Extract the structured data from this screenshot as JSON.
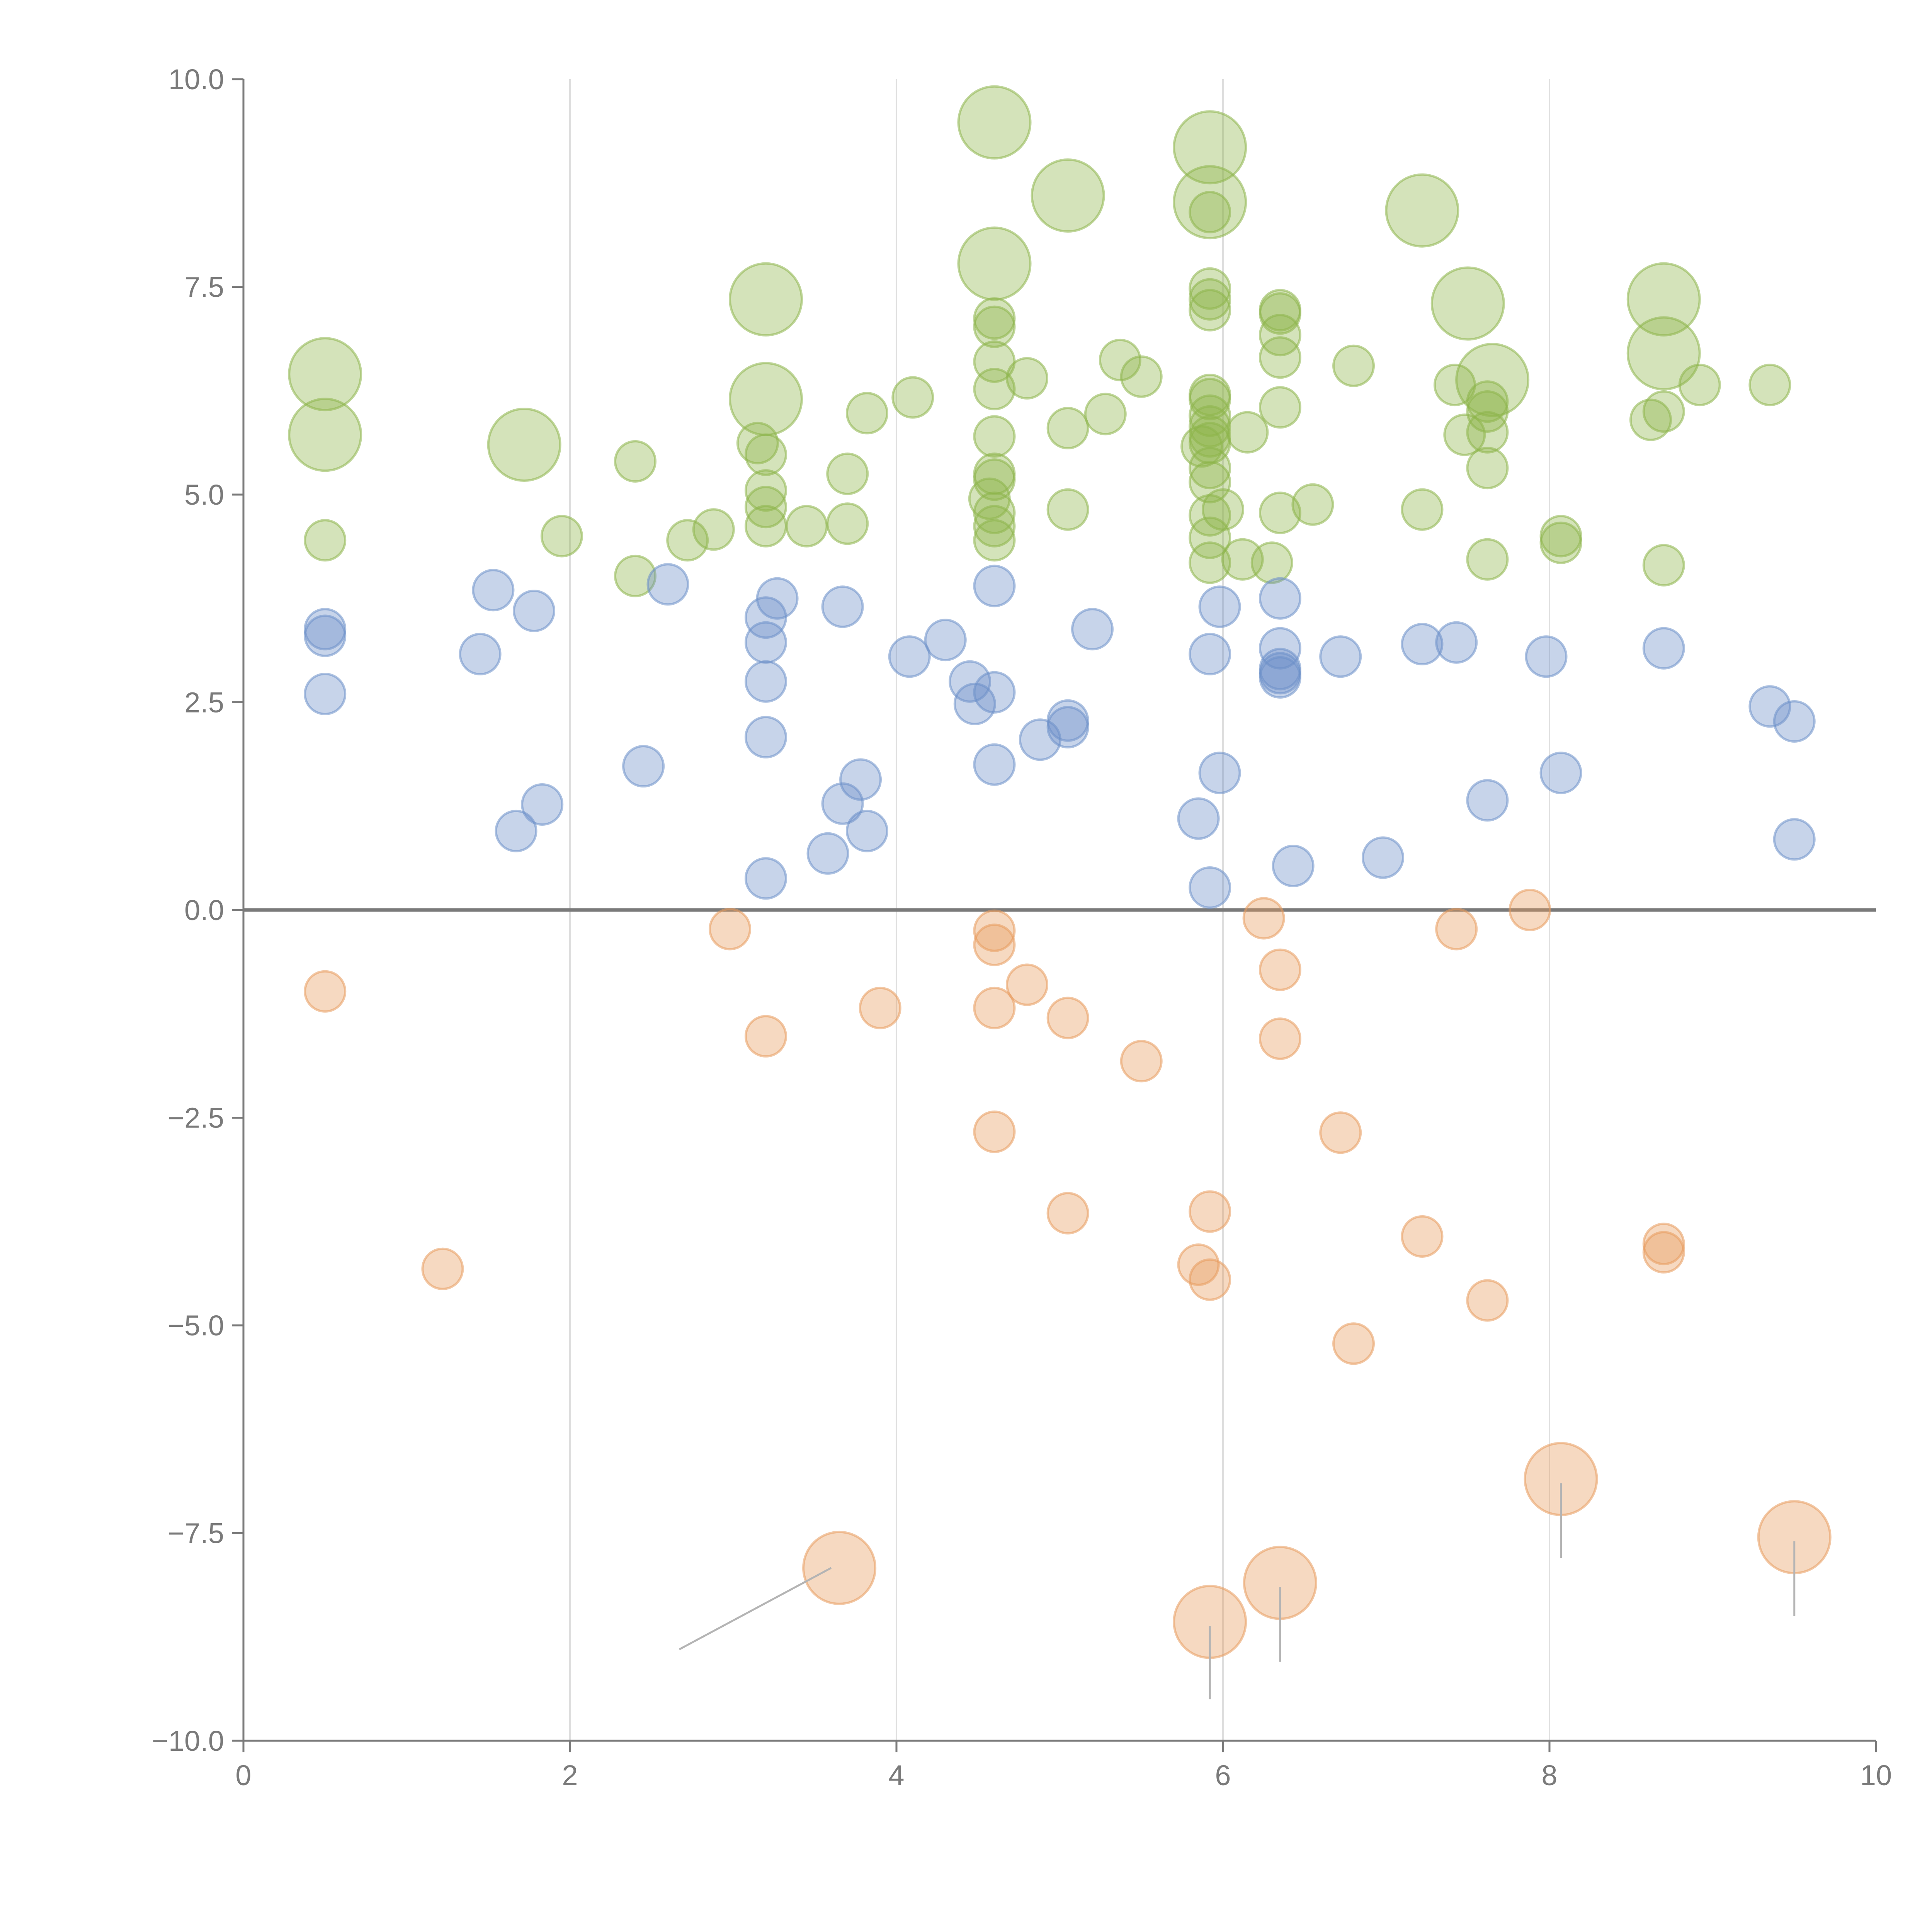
{
  "chart_data": {
    "type": "scatter",
    "subtype": "bubble",
    "title": "",
    "xlabel": "",
    "ylabel": "",
    "xlim": [
      0,
      10
    ],
    "ylim": [
      -10,
      10
    ],
    "x_ticks": [
      "0",
      "2",
      "4",
      "6",
      "8",
      "10"
    ],
    "x_tick_values": [
      0,
      2,
      4,
      6,
      8,
      10
    ],
    "y_ticks": [
      "10.0",
      "7.5",
      "5.0",
      "2.5",
      "0.0",
      "−2.5",
      "−5.0",
      "−7.5",
      "−10.0"
    ],
    "y_tick_values": [
      10,
      7.5,
      5,
      2.5,
      0,
      -2.5,
      -5,
      -7.5,
      -10
    ],
    "vertical_gridlines_at": [
      2,
      4,
      6,
      8
    ],
    "zero_line": true,
    "legend": "none",
    "series": [
      {
        "name": "green",
        "color": "#8db54a",
        "stroke": "#8db54a",
        "points": [
          {
            "x": 0.5,
            "y": 6.45,
            "s": 2
          },
          {
            "x": 0.5,
            "y": 5.72,
            "s": 2
          },
          {
            "x": 0.5,
            "y": 4.45,
            "s": 1
          },
          {
            "x": 1.72,
            "y": 5.6,
            "s": 2
          },
          {
            "x": 1.95,
            "y": 4.5,
            "s": 1
          },
          {
            "x": 2.4,
            "y": 5.4,
            "s": 1
          },
          {
            "x": 2.4,
            "y": 4.02,
            "s": 1
          },
          {
            "x": 2.72,
            "y": 4.45,
            "s": 1
          },
          {
            "x": 2.88,
            "y": 4.58,
            "s": 1
          },
          {
            "x": 3.2,
            "y": 7.35,
            "s": 2
          },
          {
            "x": 3.2,
            "y": 6.15,
            "s": 2
          },
          {
            "x": 3.15,
            "y": 5.62,
            "s": 1
          },
          {
            "x": 3.2,
            "y": 5.48,
            "s": 1
          },
          {
            "x": 3.2,
            "y": 5.05,
            "s": 1
          },
          {
            "x": 3.2,
            "y": 4.85,
            "s": 1
          },
          {
            "x": 3.2,
            "y": 4.62,
            "s": 1
          },
          {
            "x": 3.45,
            "y": 4.62,
            "s": 1
          },
          {
            "x": 3.7,
            "y": 5.25,
            "s": 1
          },
          {
            "x": 3.7,
            "y": 4.65,
            "s": 1
          },
          {
            "x": 3.82,
            "y": 5.98,
            "s": 1
          },
          {
            "x": 4.1,
            "y": 6.17,
            "s": 1
          },
          {
            "x": 4.6,
            "y": 9.48,
            "s": 2
          },
          {
            "x": 4.6,
            "y": 7.78,
            "s": 2
          },
          {
            "x": 4.6,
            "y": 7.12,
            "s": 1
          },
          {
            "x": 4.6,
            "y": 7.02,
            "s": 1
          },
          {
            "x": 4.6,
            "y": 6.6,
            "s": 1
          },
          {
            "x": 4.6,
            "y": 6.27,
            "s": 1
          },
          {
            "x": 4.6,
            "y": 5.7,
            "s": 1
          },
          {
            "x": 4.6,
            "y": 5.25,
            "s": 1
          },
          {
            "x": 4.6,
            "y": 5.18,
            "s": 1
          },
          {
            "x": 4.57,
            "y": 4.95,
            "s": 1
          },
          {
            "x": 4.6,
            "y": 4.78,
            "s": 1
          },
          {
            "x": 4.6,
            "y": 4.62,
            "s": 1
          },
          {
            "x": 4.6,
            "y": 4.45,
            "s": 1
          },
          {
            "x": 4.8,
            "y": 6.4,
            "s": 1
          },
          {
            "x": 5.05,
            "y": 8.6,
            "s": 2
          },
          {
            "x": 5.05,
            "y": 5.8,
            "s": 1
          },
          {
            "x": 5.05,
            "y": 4.82,
            "s": 1
          },
          {
            "x": 5.28,
            "y": 5.97,
            "s": 1
          },
          {
            "x": 5.37,
            "y": 6.62,
            "s": 1
          },
          {
            "x": 5.5,
            "y": 6.42,
            "s": 1
          },
          {
            "x": 5.92,
            "y": 9.18,
            "s": 2
          },
          {
            "x": 5.92,
            "y": 8.52,
            "s": 2
          },
          {
            "x": 5.92,
            "y": 8.4,
            "s": 1
          },
          {
            "x": 5.92,
            "y": 7.48,
            "s": 1
          },
          {
            "x": 5.92,
            "y": 7.35,
            "s": 1
          },
          {
            "x": 5.92,
            "y": 7.22,
            "s": 1
          },
          {
            "x": 5.92,
            "y": 6.2,
            "s": 1
          },
          {
            "x": 5.92,
            "y": 6.15,
            "s": 1
          },
          {
            "x": 5.92,
            "y": 5.95,
            "s": 1
          },
          {
            "x": 5.92,
            "y": 5.82,
            "s": 1
          },
          {
            "x": 5.92,
            "y": 5.7,
            "s": 1
          },
          {
            "x": 5.92,
            "y": 5.62,
            "s": 1
          },
          {
            "x": 5.87,
            "y": 5.58,
            "s": 1
          },
          {
            "x": 5.92,
            "y": 5.32,
            "s": 1
          },
          {
            "x": 5.92,
            "y": 5.15,
            "s": 1
          },
          {
            "x": 5.92,
            "y": 4.75,
            "s": 1
          },
          {
            "x": 5.92,
            "y": 4.48,
            "s": 1
          },
          {
            "x": 5.92,
            "y": 4.18,
            "s": 1
          },
          {
            "x": 6.0,
            "y": 4.82,
            "s": 1
          },
          {
            "x": 6.12,
            "y": 4.22,
            "s": 1
          },
          {
            "x": 6.15,
            "y": 5.75,
            "s": 1
          },
          {
            "x": 6.35,
            "y": 7.22,
            "s": 1
          },
          {
            "x": 6.35,
            "y": 7.18,
            "s": 1
          },
          {
            "x": 6.35,
            "y": 6.92,
            "s": 1
          },
          {
            "x": 6.35,
            "y": 6.65,
            "s": 1
          },
          {
            "x": 6.35,
            "y": 6.05,
            "s": 1
          },
          {
            "x": 6.35,
            "y": 4.78,
            "s": 1
          },
          {
            "x": 6.3,
            "y": 4.18,
            "s": 1
          },
          {
            "x": 6.55,
            "y": 4.88,
            "s": 1
          },
          {
            "x": 6.8,
            "y": 6.55,
            "s": 1
          },
          {
            "x": 7.22,
            "y": 8.42,
            "s": 2
          },
          {
            "x": 7.22,
            "y": 4.82,
            "s": 1
          },
          {
            "x": 7.42,
            "y": 6.32,
            "s": 1
          },
          {
            "x": 7.5,
            "y": 7.3,
            "s": 2
          },
          {
            "x": 7.48,
            "y": 5.72,
            "s": 1
          },
          {
            "x": 7.65,
            "y": 6.38,
            "s": 2
          },
          {
            "x": 7.62,
            "y": 6.12,
            "s": 1
          },
          {
            "x": 7.62,
            "y": 6.0,
            "s": 1
          },
          {
            "x": 7.62,
            "y": 5.75,
            "s": 1
          },
          {
            "x": 7.62,
            "y": 5.32,
            "s": 1
          },
          {
            "x": 7.62,
            "y": 4.22,
            "s": 1
          },
          {
            "x": 8.07,
            "y": 4.5,
            "s": 1
          },
          {
            "x": 8.07,
            "y": 4.42,
            "s": 1
          },
          {
            "x": 8.7,
            "y": 7.35,
            "s": 2
          },
          {
            "x": 8.7,
            "y": 6.7,
            "s": 2
          },
          {
            "x": 8.7,
            "y": 6.0,
            "s": 1
          },
          {
            "x": 8.62,
            "y": 5.9,
            "s": 1
          },
          {
            "x": 8.7,
            "y": 4.15,
            "s": 1
          },
          {
            "x": 8.92,
            "y": 6.32,
            "s": 1
          },
          {
            "x": 9.35,
            "y": 6.32,
            "s": 1
          }
        ]
      },
      {
        "name": "blue",
        "color": "#6b8fc9",
        "stroke": "#6b8fc9",
        "points": [
          {
            "x": 0.5,
            "y": 3.38,
            "s": 1
          },
          {
            "x": 0.5,
            "y": 3.3,
            "s": 1
          },
          {
            "x": 0.5,
            "y": 2.6,
            "s": 1
          },
          {
            "x": 1.45,
            "y": 3.08,
            "s": 1
          },
          {
            "x": 1.53,
            "y": 3.85,
            "s": 1
          },
          {
            "x": 1.78,
            "y": 3.6,
            "s": 1
          },
          {
            "x": 1.67,
            "y": 0.95,
            "s": 1
          },
          {
            "x": 1.83,
            "y": 1.27,
            "s": 1
          },
          {
            "x": 2.45,
            "y": 1.73,
            "s": 1
          },
          {
            "x": 2.6,
            "y": 3.92,
            "s": 1
          },
          {
            "x": 3.2,
            "y": 3.52,
            "s": 1
          },
          {
            "x": 3.2,
            "y": 3.22,
            "s": 1
          },
          {
            "x": 3.27,
            "y": 3.75,
            "s": 1
          },
          {
            "x": 3.2,
            "y": 2.75,
            "s": 1
          },
          {
            "x": 3.2,
            "y": 2.08,
            "s": 1
          },
          {
            "x": 3.2,
            "y": 0.38,
            "s": 1
          },
          {
            "x": 3.58,
            "y": 0.68,
            "s": 1
          },
          {
            "x": 3.67,
            "y": 1.28,
            "s": 1
          },
          {
            "x": 3.67,
            "y": 3.65,
            "s": 1
          },
          {
            "x": 3.78,
            "y": 1.57,
            "s": 1
          },
          {
            "x": 3.82,
            "y": 0.95,
            "s": 1
          },
          {
            "x": 4.08,
            "y": 3.05,
            "s": 1
          },
          {
            "x": 4.3,
            "y": 3.25,
            "s": 1
          },
          {
            "x": 4.45,
            "y": 2.75,
            "s": 1
          },
          {
            "x": 4.48,
            "y": 2.48,
            "s": 1
          },
          {
            "x": 4.6,
            "y": 2.62,
            "s": 1
          },
          {
            "x": 4.6,
            "y": 3.9,
            "s": 1
          },
          {
            "x": 4.6,
            "y": 1.75,
            "s": 1
          },
          {
            "x": 4.88,
            "y": 2.05,
            "s": 1
          },
          {
            "x": 5.05,
            "y": 2.28,
            "s": 1
          },
          {
            "x": 5.05,
            "y": 2.2,
            "s": 1
          },
          {
            "x": 5.2,
            "y": 3.38,
            "s": 1
          },
          {
            "x": 5.85,
            "y": 1.1,
            "s": 1
          },
          {
            "x": 5.92,
            "y": 3.08,
            "s": 1
          },
          {
            "x": 5.92,
            "y": 0.27,
            "s": 1
          },
          {
            "x": 5.98,
            "y": 3.65,
            "s": 1
          },
          {
            "x": 5.98,
            "y": 1.65,
            "s": 1
          },
          {
            "x": 6.35,
            "y": 3.75,
            "s": 1
          },
          {
            "x": 6.35,
            "y": 3.15,
            "s": 1
          },
          {
            "x": 6.35,
            "y": 2.9,
            "s": 1
          },
          {
            "x": 6.35,
            "y": 2.85,
            "s": 1
          },
          {
            "x": 6.35,
            "y": 2.8,
            "s": 1
          },
          {
            "x": 6.43,
            "y": 0.53,
            "s": 1
          },
          {
            "x": 6.72,
            "y": 3.05,
            "s": 1
          },
          {
            "x": 6.98,
            "y": 0.63,
            "s": 1
          },
          {
            "x": 7.22,
            "y": 3.2,
            "s": 1
          },
          {
            "x": 7.43,
            "y": 3.22,
            "s": 1
          },
          {
            "x": 7.62,
            "y": 1.32,
            "s": 1
          },
          {
            "x": 7.98,
            "y": 3.05,
            "s": 1
          },
          {
            "x": 8.07,
            "y": 1.65,
            "s": 1
          },
          {
            "x": 8.7,
            "y": 3.15,
            "s": 1
          },
          {
            "x": 9.35,
            "y": 2.45,
            "s": 1
          },
          {
            "x": 9.5,
            "y": 2.27,
            "s": 1
          },
          {
            "x": 9.5,
            "y": 0.85,
            "s": 1
          }
        ]
      },
      {
        "name": "orange",
        "color": "#e89a5c",
        "stroke": "#e89a5c",
        "points": [
          {
            "x": 0.5,
            "y": -0.98,
            "s": 1
          },
          {
            "x": 1.22,
            "y": -4.32,
            "s": 1
          },
          {
            "x": 2.98,
            "y": -0.23,
            "s": 1
          },
          {
            "x": 3.2,
            "y": -1.52,
            "s": 1
          },
          {
            "x": 3.65,
            "y": -7.92,
            "s": 2
          },
          {
            "x": 3.9,
            "y": -1.18,
            "s": 1
          },
          {
            "x": 4.6,
            "y": -0.25,
            "s": 1
          },
          {
            "x": 4.6,
            "y": -0.42,
            "s": 1
          },
          {
            "x": 4.6,
            "y": -1.18,
            "s": 1
          },
          {
            "x": 4.6,
            "y": -2.67,
            "s": 1
          },
          {
            "x": 4.8,
            "y": -0.9,
            "s": 1
          },
          {
            "x": 5.05,
            "y": -1.3,
            "s": 1
          },
          {
            "x": 5.05,
            "y": -3.65,
            "s": 1
          },
          {
            "x": 5.5,
            "y": -1.82,
            "s": 1
          },
          {
            "x": 5.85,
            "y": -4.27,
            "s": 1
          },
          {
            "x": 5.92,
            "y": -3.63,
            "s": 1
          },
          {
            "x": 5.92,
            "y": -4.45,
            "s": 1
          },
          {
            "x": 5.92,
            "y": -8.57,
            "s": 2
          },
          {
            "x": 6.25,
            "y": -0.1,
            "s": 1
          },
          {
            "x": 6.35,
            "y": -0.72,
            "s": 1
          },
          {
            "x": 6.35,
            "y": -1.55,
            "s": 1
          },
          {
            "x": 6.35,
            "y": -8.1,
            "s": 2
          },
          {
            "x": 6.72,
            "y": -2.68,
            "s": 1
          },
          {
            "x": 6.8,
            "y": -5.22,
            "s": 1
          },
          {
            "x": 7.22,
            "y": -3.93,
            "s": 1
          },
          {
            "x": 7.43,
            "y": -0.23,
            "s": 1
          },
          {
            "x": 7.62,
            "y": -4.7,
            "s": 1
          },
          {
            "x": 7.88,
            "y": 0.0,
            "s": 1
          },
          {
            "x": 8.07,
            "y": -6.85,
            "s": 2
          },
          {
            "x": 8.7,
            "y": -4.02,
            "s": 1
          },
          {
            "x": 8.7,
            "y": -4.12,
            "s": 1
          },
          {
            "x": 9.5,
            "y": -7.55,
            "s": 2
          }
        ]
      }
    ],
    "leader_lines": [
      {
        "x1": 3.6,
        "y1": -7.92,
        "x2": 2.67,
        "y2": -8.9
      },
      {
        "x1": 5.92,
        "y1": -8.62,
        "x2": 5.92,
        "y2": -9.5
      },
      {
        "x1": 6.35,
        "y1": -8.15,
        "x2": 6.35,
        "y2": -9.05
      },
      {
        "x1": 8.07,
        "y1": -6.9,
        "x2": 8.07,
        "y2": -7.8
      },
      {
        "x1": 9.5,
        "y1": -7.6,
        "x2": 9.5,
        "y2": -8.5
      }
    ]
  }
}
